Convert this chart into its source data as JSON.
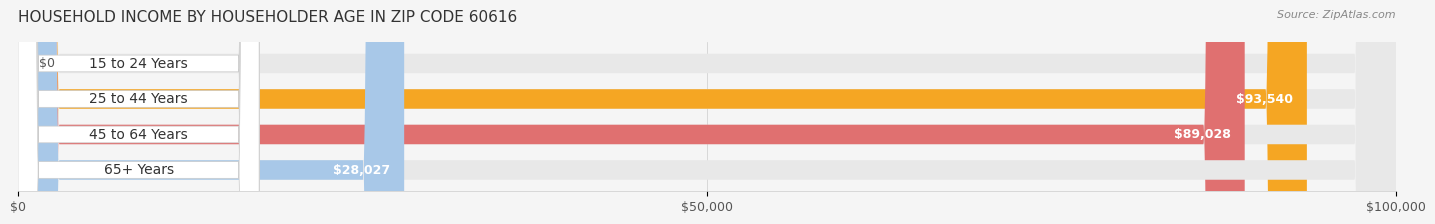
{
  "title": "HOUSEHOLD INCOME BY HOUSEHOLDER AGE IN ZIP CODE 60616",
  "source": "Source: ZipAtlas.com",
  "categories": [
    "15 to 24 Years",
    "25 to 44 Years",
    "45 to 64 Years",
    "65+ Years"
  ],
  "values": [
    0,
    93540,
    89028,
    28027
  ],
  "bar_colors": [
    "#f08080",
    "#f5a623",
    "#e07070",
    "#a8c8e8"
  ],
  "label_colors": [
    "#c06060",
    "#e8941a",
    "#cc5555",
    "#7aaad0"
  ],
  "value_labels": [
    "$0",
    "$93,540",
    "$89,028",
    "$28,027"
  ],
  "xlim": [
    0,
    100000
  ],
  "xticks": [
    0,
    50000,
    100000
  ],
  "xticklabels": [
    "$0",
    "$50,000",
    "$100,000"
  ],
  "background_color": "#f5f5f5",
  "bar_background": "#e8e8e8",
  "title_fontsize": 11,
  "label_fontsize": 10,
  "value_fontsize": 9,
  "bar_height": 0.55,
  "fig_width": 14.06,
  "fig_height": 2.33
}
